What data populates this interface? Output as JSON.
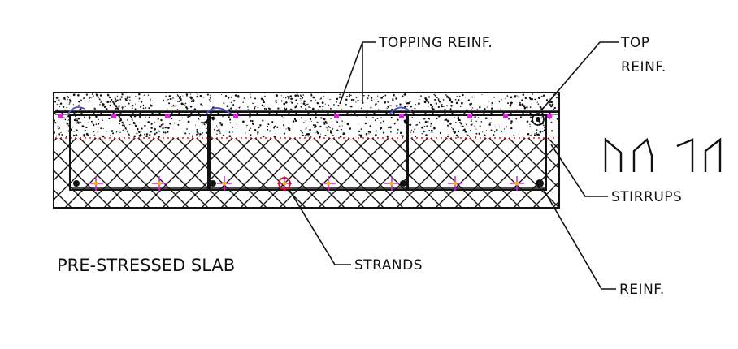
{
  "labels": {
    "topping_reinf": "TOPPING REINF.",
    "top_reinf_line1": "TOP",
    "top_reinf_line2": "REINF.",
    "stirrups": "STIRRUPS",
    "strands": "STRANDS",
    "reinf": "REINF.",
    "title": "PRE-STRESSED SLAB"
  },
  "colors": {
    "line": "#111111",
    "strand_marker": "#e020e0",
    "prestress_line": "#e01010",
    "stirrup_hook": "#5050c8"
  }
}
